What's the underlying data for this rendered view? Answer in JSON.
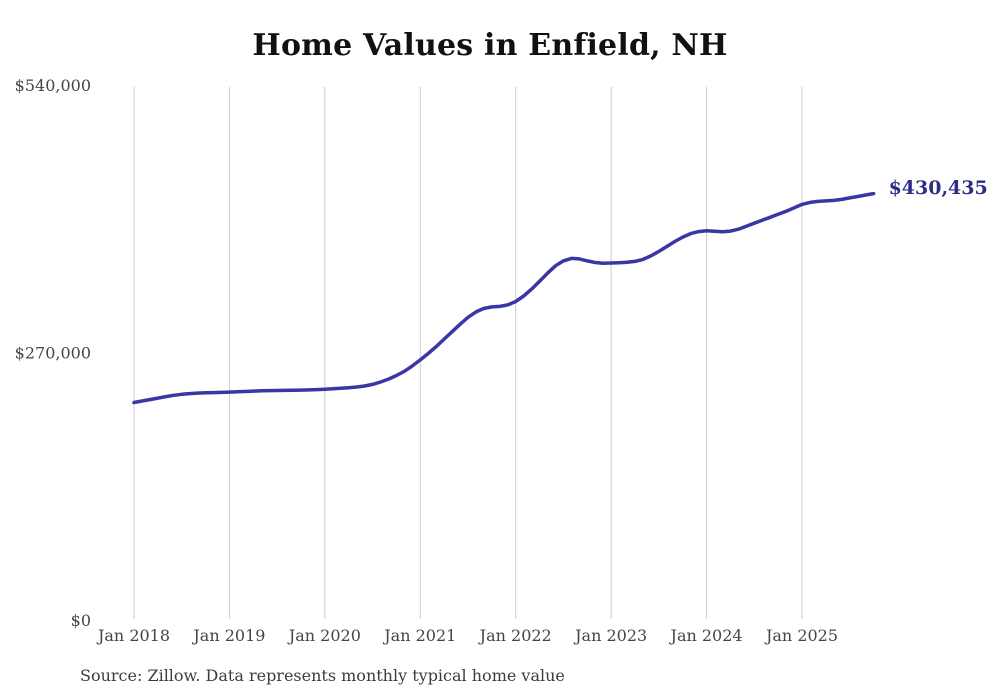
{
  "title": "Home Values in Enfield, NH",
  "source": "Source: Zillow. Data represents monthly typical home value",
  "end_label": "$430,435",
  "chart_data": {
    "type": "line",
    "title": "Home Values in Enfield, NH",
    "x_start": "Jan 2018",
    "x_end": "Oct 2025",
    "x_interval": "monthly",
    "x_tick_labels": [
      "Jan 2018",
      "Jan 2019",
      "Jan 2020",
      "Jan 2021",
      "Jan 2022",
      "Jan 2023",
      "Jan 2024",
      "Jan 2025"
    ],
    "y_ticks": [
      {
        "label": "$0",
        "value": 0
      },
      {
        "label": "$270,000",
        "value": 270000
      },
      {
        "label": "$540,000",
        "value": 540000
      }
    ],
    "ylim": [
      0,
      540000
    ],
    "xlabel": "",
    "ylabel": "",
    "grid": "vertical-only",
    "legend": "none",
    "annotation": {
      "text": "$430,435",
      "value": 430435,
      "position": "line-end"
    },
    "series": [
      {
        "name": "Typical home value",
        "values": [
          219500,
          221000,
          222500,
          224000,
          225500,
          226800,
          227800,
          228500,
          229000,
          229300,
          229500,
          229700,
          230000,
          230300,
          230600,
          231000,
          231300,
          231500,
          231600,
          231700,
          231800,
          232000,
          232300,
          232600,
          233000,
          233400,
          233900,
          234500,
          235200,
          236200,
          237800,
          240200,
          243200,
          246800,
          251000,
          256500,
          262500,
          269000,
          276000,
          283500,
          291000,
          298500,
          305500,
          311000,
          314500,
          316000,
          316500,
          318000,
          321500,
          327000,
          334000,
          342000,
          350000,
          357500,
          362500,
          365000,
          364500,
          362500,
          360800,
          360000,
          360300,
          360600,
          361000,
          362000,
          364000,
          367500,
          372000,
          377000,
          382000,
          386500,
          390000,
          392000,
          392800,
          392300,
          391800,
          392500,
          394500,
          397500,
          400500,
          403500,
          406500,
          409500,
          412500,
          416000,
          419500,
          421500,
          422500,
          423000,
          423500,
          424500,
          426000,
          427500,
          429000,
          430435
        ]
      }
    ],
    "colors": {
      "line": "#3b36a5",
      "end_label": "#2d2d87",
      "grid": "#cccccc",
      "tick": "#454545",
      "title": "#111111",
      "source": "#3c3c3c"
    }
  }
}
